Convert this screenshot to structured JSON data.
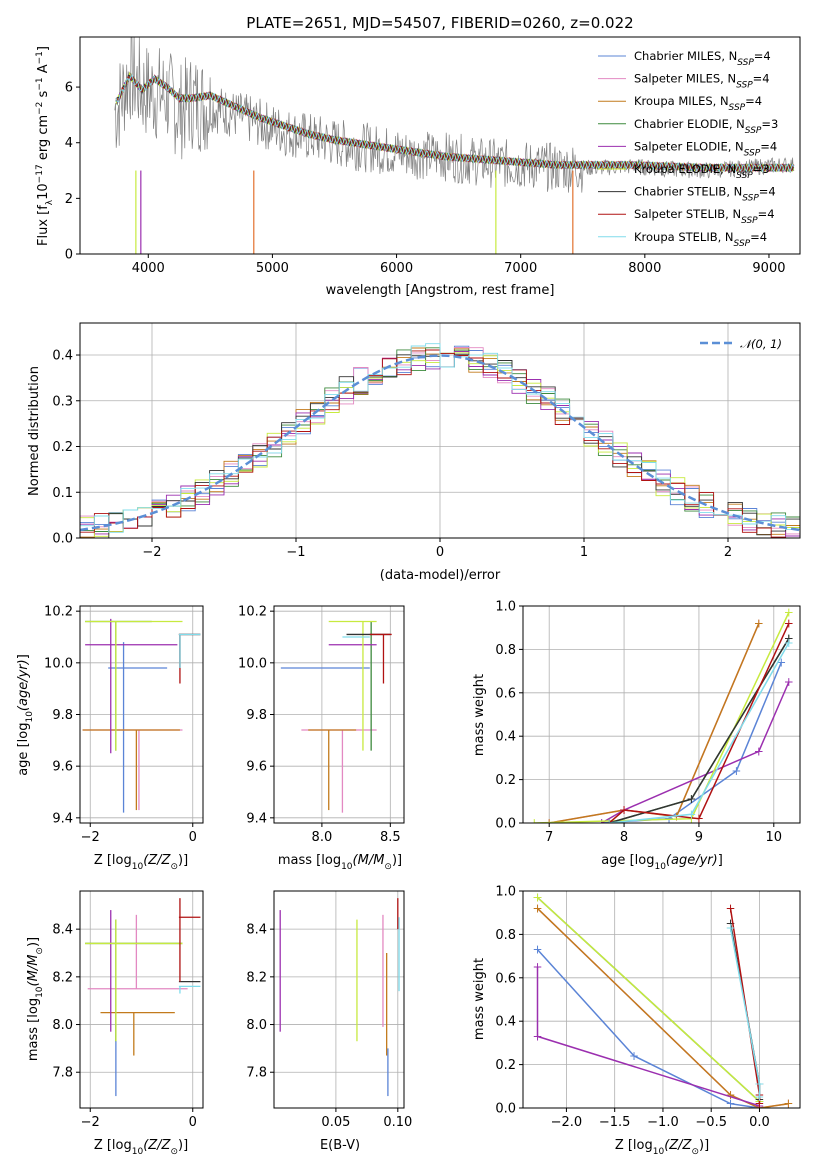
{
  "figure": {
    "title": "PLATE=2651, MJD=54507, FIBERID=0260, z=0.022"
  },
  "colors": {
    "Chabrier MILES": "#5b84d6",
    "Salpeter MILES": "#e389c2",
    "Kroupa MILES": "#c27a1c",
    "Chabrier ELODIE": "#3d8a3d",
    "Salpeter ELODIE": "#9b2faf",
    "Kroupa ELODIE": "#c7ea3f",
    "Chabrier STELIB": "#333333",
    "Salpeter STELIB": "#b01212",
    "Kroupa STELIB": "#80dceb",
    "orange": "#e2712e",
    "lime": "#b7e43b",
    "data_spectrum": "#808080",
    "gaussian": "#5b8fd6",
    "grid": "#b0b0b0"
  },
  "chart_data": [
    {
      "id": "spectrum",
      "type": "line",
      "title": "PLATE=2651, MJD=54507, FIBERID=0260, z=0.022",
      "xlabel": "wavelength [Angstrom, rest frame]",
      "ylabel": "Flux [f$_\\lambda$10$^{-17}$ erg cm$^{-2}$ s$^{-1}$ A$^{-1}$]",
      "xlim": [
        3450,
        9250
      ],
      "ylim": [
        0,
        7.8
      ],
      "xticks": [
        4000,
        5000,
        6000,
        7000,
        8000,
        9000
      ],
      "yticks": [
        0,
        2,
        4,
        6
      ],
      "grid": false,
      "legend_position": "top-right",
      "legend": [
        {
          "name": "Chabrier MILES",
          "nssp": "4"
        },
        {
          "name": "Salpeter MILES",
          "nssp": "4"
        },
        {
          "name": "Kroupa MILES",
          "nssp": "4"
        },
        {
          "name": "Chabrier ELODIE",
          "nssp": "3"
        },
        {
          "name": "Salpeter ELODIE",
          "nssp": "4"
        },
        {
          "name": "Kroupa ELODIE",
          "nssp": "3"
        },
        {
          "name": "Chabrier STELIB",
          "nssp": "4"
        },
        {
          "name": "Salpeter STELIB",
          "nssp": "4"
        },
        {
          "name": "Kroupa STELIB",
          "nssp": "4"
        }
      ],
      "observed_x": [
        3750,
        3850,
        3950,
        4050,
        4150,
        4250,
        4350,
        4500,
        4700,
        4900,
        5100,
        5300,
        5500,
        5800,
        6100,
        6400,
        6700,
        7000,
        7300,
        7600,
        7900,
        8200,
        8500,
        8800,
        9100
      ],
      "observed_y": [
        5.2,
        6.5,
        5.9,
        5.8,
        5.7,
        5.1,
        5.5,
        5.3,
        5.0,
        4.7,
        4.4,
        4.2,
        4.0,
        3.8,
        3.6,
        3.5,
        3.3,
        3.2,
        3.1,
        3.1,
        3.15,
        3.05,
        3.0,
        3.1,
        3.2
      ],
      "model_x": [
        3750,
        3850,
        3950,
        4050,
        4150,
        4250,
        4350,
        4500,
        4700,
        4900,
        5100,
        5300,
        5500,
        5800,
        6100,
        6400,
        6700,
        7000,
        7300,
        7600,
        7900,
        8200,
        8500,
        8800,
        9100
      ],
      "model_y": [
        5.5,
        6.4,
        5.9,
        6.3,
        6.0,
        5.6,
        5.6,
        5.7,
        5.3,
        4.9,
        4.6,
        4.3,
        4.1,
        3.9,
        3.7,
        3.5,
        3.4,
        3.3,
        3.2,
        3.2,
        3.2,
        3.15,
        3.1,
        3.1,
        3.1
      ]
    },
    {
      "id": "residuals",
      "type": "line",
      "xlabel": "(data-model)/error",
      "ylabel": "Normed distribution",
      "xlim": [
        -2.5,
        2.5
      ],
      "ylim": [
        0,
        0.47
      ],
      "xticks": [
        -2,
        -1,
        0,
        1,
        2
      ],
      "ytick_labels": [
        "0.0",
        "0.1",
        "0.2",
        "0.3",
        "0.4"
      ],
      "yticks": [
        0,
        0.1,
        0.2,
        0.3,
        0.4
      ],
      "grid": true,
      "legend_position": "top-right",
      "legend_label": "𝒩(0, 1)"
    },
    {
      "id": "age-Z",
      "type": "scatter",
      "xlabel": "Z [log10(Z/Z⊙)]",
      "ylabel": "age [log10(age/yr)]",
      "xlim": [
        -2.2,
        0.2
      ],
      "ylim": [
        9.38,
        10.22
      ],
      "xticks": [
        -2,
        0
      ],
      "yticks": [
        9.4,
        9.6,
        9.8,
        10.0,
        10.2
      ],
      "ytick_labels": [
        "9.4",
        "9.6",
        "9.8",
        "10.0",
        "10.2"
      ],
      "grid": true,
      "points": [
        {
          "model": "Chabrier MILES",
          "x": -1.35,
          "xerr": [
            0.3,
            0.85
          ],
          "y": 9.98,
          "yerr": [
            0.56,
            0.1
          ]
        },
        {
          "model": "Salpeter MILES",
          "x": -1.05,
          "xerr": [
            1.1,
            0.85
          ],
          "y": 9.74,
          "yerr": [
            0.31,
            0.0
          ]
        },
        {
          "model": "Kroupa MILES",
          "x": -1.1,
          "xerr": [
            1.05,
            0.85
          ],
          "y": 9.74,
          "yerr": [
            0.31,
            0.0
          ]
        },
        {
          "model": "Chabrier ELODIE",
          "x": -1.5,
          "xerr": [
            0.6,
            0.7
          ],
          "y": 10.16,
          "yerr": [
            0.5,
            0.0
          ]
        },
        {
          "model": "Salpeter ELODIE",
          "x": -1.6,
          "xerr": [
            0.5,
            1.3
          ],
          "y": 10.07,
          "yerr": [
            0.42,
            0.1
          ]
        },
        {
          "model": "Kroupa ELODIE",
          "x": -1.5,
          "xerr": [
            0.6,
            1.3
          ],
          "y": 10.16,
          "yerr": [
            0.5,
            0.0
          ]
        },
        {
          "model": "Chabrier STELIB",
          "x": -0.25,
          "xerr": [
            0.02,
            0.4
          ],
          "y": 10.11,
          "yerr": [
            0.13,
            0.0
          ]
        },
        {
          "model": "Salpeter STELIB",
          "x": -0.25,
          "xerr": [
            0.02,
            0.4
          ],
          "y": 10.11,
          "yerr": [
            0.19,
            0.0
          ]
        },
        {
          "model": "Kroupa STELIB",
          "x": -0.25,
          "xerr": [
            0.02,
            0.4
          ],
          "y": 10.11,
          "yerr": [
            0.13,
            0.0
          ]
        }
      ]
    },
    {
      "id": "age-mass",
      "type": "scatter",
      "xlabel": "mass [log10(M/M⊙)]",
      "ylabel": "",
      "xlim": [
        7.65,
        8.6
      ],
      "ylim": [
        9.38,
        10.22
      ],
      "xticks": [
        8.0,
        8.5
      ],
      "xtick_labels": [
        "8.0",
        "8.5"
      ],
      "yticks": [
        9.4,
        9.6,
        9.8,
        10.0,
        10.2
      ],
      "ytick_labels": [
        "9.4",
        "9.6",
        "9.8",
        "10.0",
        "10.2"
      ],
      "grid": true,
      "points": [
        {
          "model": "Chabrier MILES",
          "x": 8.1,
          "xerr": [
            0.4,
            0.25
          ],
          "y": 9.98,
          "yerr": [
            0.0,
            0.0
          ]
        },
        {
          "model": "Salpeter MILES",
          "x": 8.15,
          "xerr": [
            0.3,
            0.25
          ],
          "y": 9.74,
          "yerr": [
            0.32,
            0.0
          ]
        },
        {
          "model": "Kroupa MILES",
          "x": 8.05,
          "xerr": [
            0.15,
            0.2
          ],
          "y": 9.74,
          "yerr": [
            0.31,
            0.0
          ]
        },
        {
          "model": "Chabrier ELODIE",
          "x": 8.36,
          "xerr": [
            0.0,
            0.0
          ],
          "y": 10.16,
          "yerr": [
            0.5,
            0.0
          ]
        },
        {
          "model": "Salpeter ELODIE",
          "x": 8.2,
          "xerr": [
            0.15,
            0.2
          ],
          "y": 10.07,
          "yerr": [
            0.0,
            0.0
          ]
        },
        {
          "model": "Kroupa ELODIE",
          "x": 8.3,
          "xerr": [
            0.25,
            0.1
          ],
          "y": 10.16,
          "yerr": [
            0.5,
            0.0
          ]
        },
        {
          "model": "Chabrier STELIB",
          "x": 8.38,
          "xerr": [
            0.2,
            0.12
          ],
          "y": 10.11,
          "yerr": [
            0.0,
            0.0
          ]
        },
        {
          "model": "Salpeter STELIB",
          "x": 8.45,
          "xerr": [
            0.1,
            0.06
          ],
          "y": 10.11,
          "yerr": [
            0.19,
            0.0
          ]
        },
        {
          "model": "Kroupa STELIB",
          "x": 8.2,
          "xerr": [
            0.05,
            0.15
          ],
          "y": 10.1,
          "yerr": [
            0.0,
            0.0
          ]
        }
      ]
    },
    {
      "id": "massweight-age",
      "type": "line",
      "xlabel": "age [log10(age/yr)]",
      "ylabel": "mass weight",
      "xlim": [
        6.65,
        10.35
      ],
      "ylim": [
        0,
        1.0
      ],
      "xticks": [
        7,
        8,
        9,
        10
      ],
      "yticks": [
        0,
        0.2,
        0.4,
        0.6,
        0.8,
        1.0
      ],
      "ytick_labels": [
        "0.0",
        "0.2",
        "0.4",
        "0.6",
        "0.8",
        "1.0"
      ],
      "grid": true,
      "series": [
        {
          "model": "Chabrier MILES",
          "x": [
            7.7,
            8.6,
            9.5,
            10.1
          ],
          "y": [
            0.0,
            0.02,
            0.24,
            0.74
          ]
        },
        {
          "model": "Salpeter MILES",
          "x": [
            7.0,
            8.0,
            8.7,
            9.8
          ],
          "y": [
            0.0,
            0.06,
            0.03,
            0.92
          ]
        },
        {
          "model": "Kroupa MILES",
          "x": [
            7.0,
            8.0,
            8.7,
            9.8
          ],
          "y": [
            0.0,
            0.06,
            0.03,
            0.92
          ]
        },
        {
          "model": "Chabrier ELODIE",
          "x": [
            7.8,
            8.9,
            10.2
          ],
          "y": [
            0.0,
            0.11,
            0.85
          ]
        },
        {
          "model": "Salpeter ELODIE",
          "x": [
            7.7,
            8.0,
            9.8,
            10.2
          ],
          "y": [
            0.0,
            0.06,
            0.33,
            0.65
          ]
        },
        {
          "model": "Kroupa ELODIE",
          "x": [
            6.8,
            8.9,
            10.2
          ],
          "y": [
            0.0,
            0.02,
            0.97
          ]
        },
        {
          "model": "Chabrier STELIB",
          "x": [
            7.8,
            8.9,
            10.2
          ],
          "y": [
            0.0,
            0.11,
            0.85
          ]
        },
        {
          "model": "Salpeter STELIB",
          "x": [
            7.8,
            8.0,
            9.0,
            10.2
          ],
          "y": [
            0.0,
            0.06,
            0.02,
            0.92
          ]
        },
        {
          "model": "Kroupa STELIB",
          "x": [
            7.8,
            8.9,
            10.2
          ],
          "y": [
            0.0,
            0.04,
            0.83
          ]
        }
      ]
    },
    {
      "id": "mass-Z",
      "type": "scatter",
      "xlabel": "Z [log10(Z/Z⊙)]",
      "ylabel": "mass [log10(M/M⊙)]",
      "xlim": [
        -2.2,
        0.2
      ],
      "ylim": [
        7.65,
        8.56
      ],
      "xticks": [
        -2,
        0
      ],
      "yticks": [
        7.8,
        8.0,
        8.2,
        8.4
      ],
      "ytick_labels": [
        "7.8",
        "8.0",
        "8.2",
        "8.4"
      ],
      "grid": true,
      "points": [
        {
          "model": "Chabrier MILES",
          "x": -1.5,
          "xerr": [
            0.0,
            0.0
          ],
          "y": 8.0,
          "yerr": [
            0.3,
            0.0
          ]
        },
        {
          "model": "Salpeter MILES",
          "x": -1.1,
          "xerr": [
            0.95,
            1.0
          ],
          "y": 8.15,
          "yerr": [
            0.0,
            0.31
          ]
        },
        {
          "model": "Kroupa MILES",
          "x": -1.15,
          "xerr": [
            0.65,
            0.8
          ],
          "y": 8.05,
          "yerr": [
            0.18,
            0.0
          ]
        },
        {
          "model": "Chabrier ELODIE",
          "x": -1.5,
          "xerr": [
            0.6,
            1.3
          ],
          "y": 8.34,
          "yerr": [
            0.41,
            0.1
          ]
        },
        {
          "model": "Salpeter ELODIE",
          "x": -1.6,
          "xerr": [
            0.0,
            0.0
          ],
          "y": 8.2,
          "yerr": [
            0.23,
            0.28
          ]
        },
        {
          "model": "Kroupa ELODIE",
          "x": -1.5,
          "xerr": [
            0.6,
            1.3
          ],
          "y": 8.34,
          "yerr": [
            0.41,
            0.1
          ]
        },
        {
          "model": "Chabrier STELIB",
          "x": -0.25,
          "xerr": [
            0.02,
            0.4
          ],
          "y": 8.18,
          "yerr": [
            0.0,
            0.0
          ]
        },
        {
          "model": "Salpeter STELIB",
          "x": -0.25,
          "xerr": [
            0.02,
            0.4
          ],
          "y": 8.45,
          "yerr": [
            0.27,
            0.08
          ]
        },
        {
          "model": "Kroupa STELIB",
          "x": -0.25,
          "xerr": [
            0.02,
            0.4
          ],
          "y": 8.16,
          "yerr": [
            0.03,
            0.0
          ]
        }
      ]
    },
    {
      "id": "mass-ebv",
      "type": "scatter",
      "xlabel": "E(B-V)",
      "ylabel": "",
      "xlim": [
        0.0,
        0.105
      ],
      "ylim": [
        7.65,
        8.56
      ],
      "xticks": [
        0.05,
        0.1
      ],
      "xtick_labels": [
        "0.05",
        "0.10"
      ],
      "yticks": [
        7.8,
        8.0,
        8.2,
        8.4
      ],
      "ytick_labels": [
        "7.8",
        "8.0",
        "8.2",
        "8.4"
      ],
      "grid": true,
      "points": [
        {
          "model": "Salpeter ELODIE",
          "x": 0.005,
          "y": 8.2,
          "yerr": [
            0.23,
            0.28
          ]
        },
        {
          "model": "Kroupa ELODIE",
          "x": 0.067,
          "y": 8.2,
          "yerr": [
            0.27,
            0.24
          ]
        },
        {
          "model": "Salpeter MILES",
          "x": 0.088,
          "y": 8.2,
          "yerr": [
            0.21,
            0.26
          ]
        },
        {
          "model": "Kroupa MILES",
          "x": 0.091,
          "y": 8.1,
          "yerr": [
            0.23,
            0.2
          ]
        },
        {
          "model": "Chabrier MILES",
          "x": 0.092,
          "y": 7.9,
          "yerr": [
            0.2,
            0.0
          ]
        },
        {
          "model": "Salpeter STELIB",
          "x": 0.1,
          "y": 8.45,
          "yerr": [
            0.05,
            0.08
          ]
        },
        {
          "model": "Kroupa STELIB",
          "x": 0.101,
          "y": 8.3,
          "yerr": [
            0.16,
            0.15
          ]
        }
      ]
    },
    {
      "id": "massweight-Z",
      "type": "line",
      "xlabel": "Z [log10(Z/Z⊙)]",
      "ylabel": "mass weight",
      "xlim": [
        -2.45,
        0.42
      ],
      "ylim": [
        0,
        1.0
      ],
      "xticks": [
        -2.0,
        -1.5,
        -1.0,
        -0.5,
        0.0
      ],
      "xtick_labels": [
        "−2.0",
        "−1.5",
        "−1.0",
        "−0.5",
        "0.0"
      ],
      "yticks": [
        0,
        0.2,
        0.4,
        0.6,
        0.8,
        1.0
      ],
      "ytick_labels": [
        "0.0",
        "0.2",
        "0.4",
        "0.6",
        "0.8",
        "1.0"
      ],
      "grid": true,
      "series": [
        {
          "model": "Chabrier MILES",
          "x": [
            -2.3,
            -1.3,
            -0.3,
            0.0
          ],
          "y": [
            0.73,
            0.24,
            0.02,
            0.0
          ]
        },
        {
          "model": "Salpeter MILES",
          "x": [
            -2.3,
            -0.3,
            0.0,
            0.3
          ],
          "y": [
            0.92,
            0.06,
            0.0,
            0.02
          ]
        },
        {
          "model": "Kroupa MILES",
          "x": [
            -2.3,
            -0.3,
            0.0,
            0.3
          ],
          "y": [
            0.92,
            0.06,
            0.0,
            0.02
          ]
        },
        {
          "model": "Chabrier ELODIE",
          "x": [
            -2.3,
            0.0
          ],
          "y": [
            0.97,
            0.03
          ]
        },
        {
          "model": "Salpeter ELODIE",
          "x": [
            -2.3,
            -2.3,
            0.0
          ],
          "y": [
            0.65,
            0.33,
            0.01
          ]
        },
        {
          "model": "Kroupa ELODIE",
          "x": [
            -2.3,
            0.0
          ],
          "y": [
            0.97,
            0.03
          ]
        },
        {
          "model": "Chabrier STELIB",
          "x": [
            -0.3,
            0.0,
            0.0
          ],
          "y": [
            0.85,
            0.11,
            0.04
          ]
        },
        {
          "model": "Salpeter STELIB",
          "x": [
            -0.3,
            0.0,
            0.0
          ],
          "y": [
            0.92,
            0.06,
            0.02
          ]
        },
        {
          "model": "Kroupa STELIB",
          "x": [
            -0.3,
            0.0,
            0.0
          ],
          "y": [
            0.83,
            0.11,
            0.05
          ]
        }
      ]
    }
  ]
}
